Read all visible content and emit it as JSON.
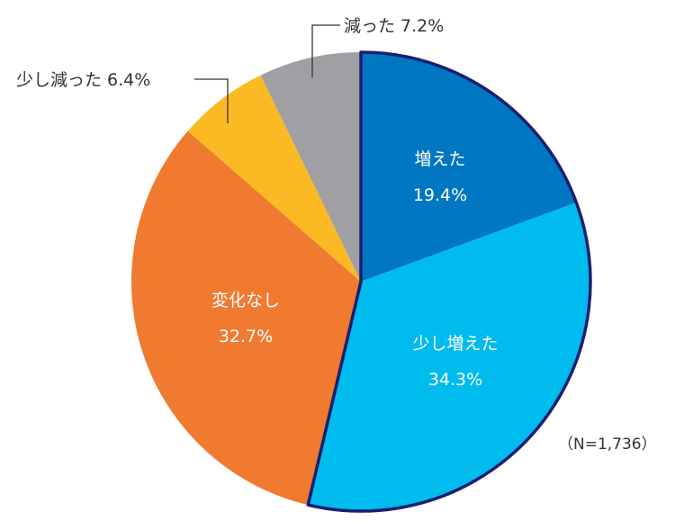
{
  "chart_data": {
    "type": "pie",
    "title": "",
    "note": "(N=1,736)",
    "start_angle_deg": 0,
    "direction": "clockwise",
    "slices": [
      {
        "label": "増えた",
        "value": 19.4,
        "value_text": "19.4%",
        "color": "#0077C0",
        "label_position": "inside"
      },
      {
        "label": "少し増えた",
        "value": 34.3,
        "value_text": "34.3%",
        "color": "#00BBEE",
        "label_position": "inside"
      },
      {
        "label": "変化なし",
        "value": 32.7,
        "value_text": "32.7%",
        "color": "#F07A30",
        "label_position": "inside"
      },
      {
        "label": "少し減った",
        "value": 6.4,
        "value_text": "6.4%",
        "color": "#FBBA23",
        "label_position": "outside"
      },
      {
        "label": "減った",
        "value": 7.2,
        "value_text": "7.2%",
        "color": "#A0A0A4",
        "label_position": "outside"
      }
    ],
    "highlight_outline": {
      "slices": [
        "増えた",
        "少し増えた"
      ],
      "color": "#1A1F6E"
    }
  },
  "labels": {
    "decreased": "減った 7.2%",
    "slightly_decreased": "少し減った 6.4%",
    "n_note": "（N=1,736）"
  }
}
